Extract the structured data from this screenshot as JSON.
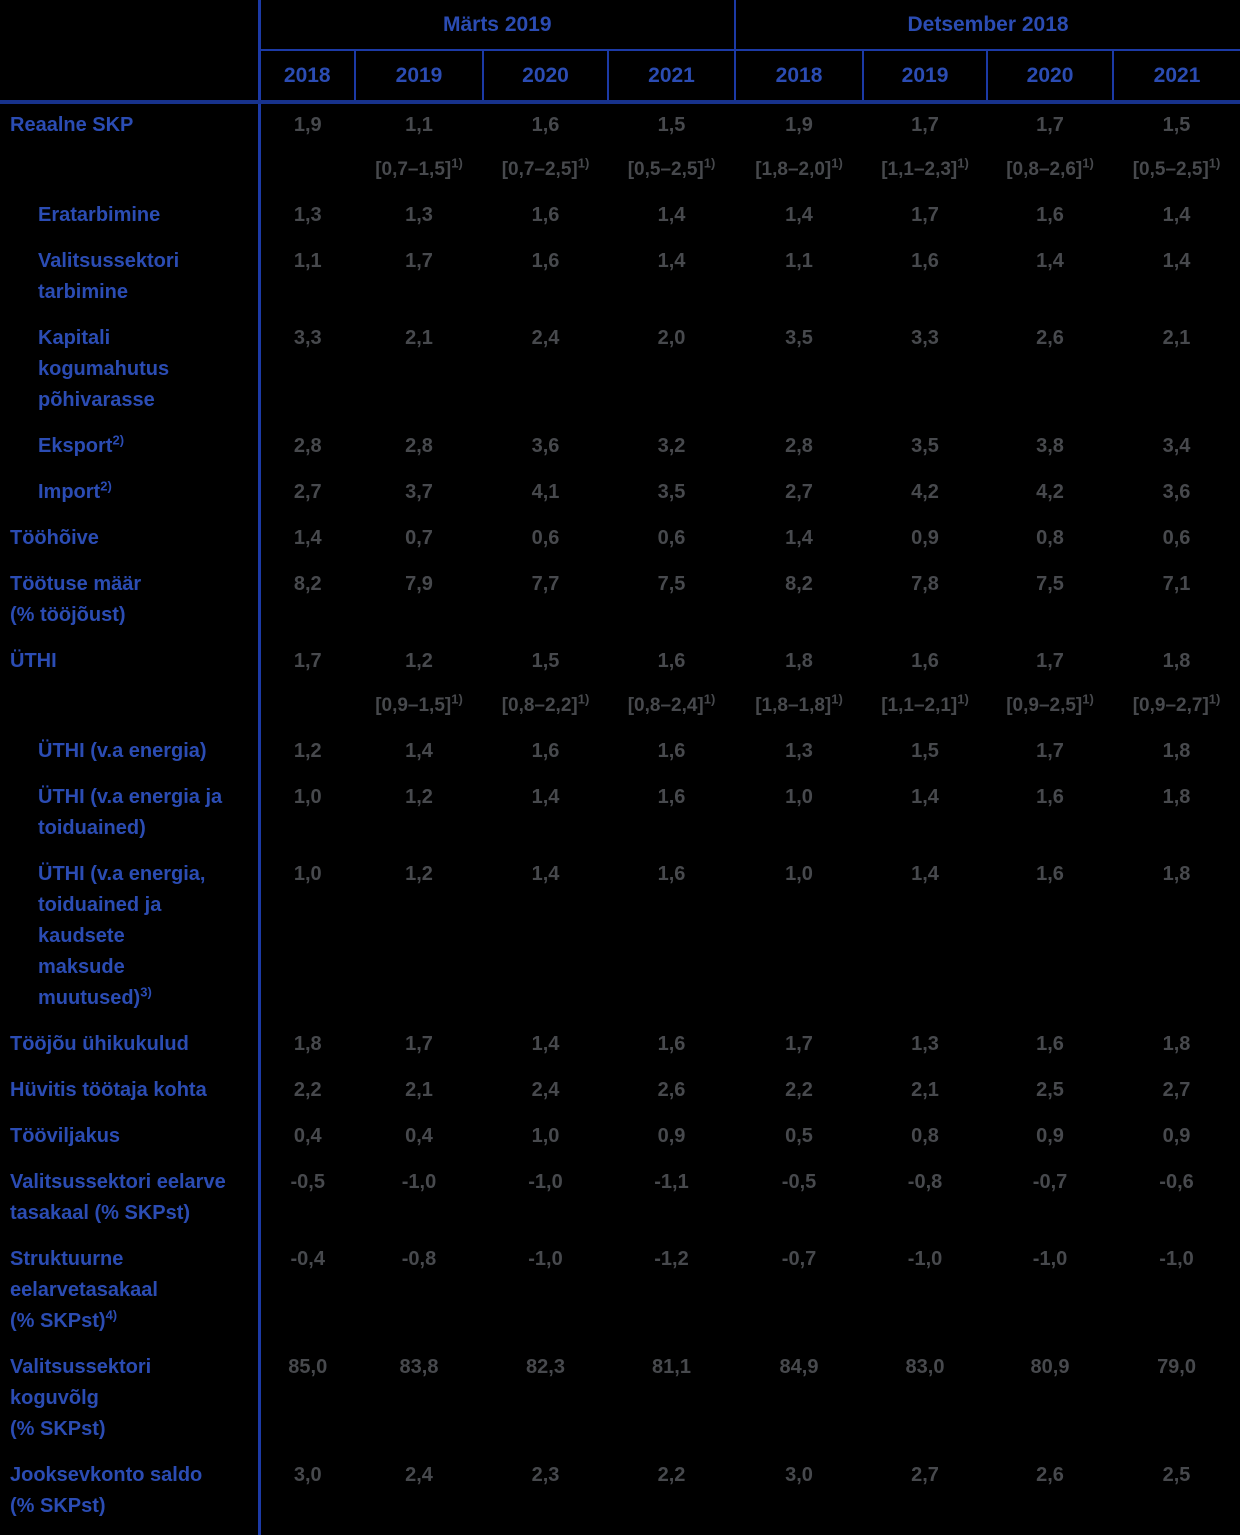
{
  "colors": {
    "background": "#000000",
    "line_blue": "#1c3aa6",
    "line_dark_blue": "#17328c",
    "label_blue": "#2b4cb3",
    "value_gray": "#47494d"
  },
  "table": {
    "col_groups": [
      {
        "label": "Märts 2019",
        "years": [
          "2018",
          "2019",
          "2020",
          "2021"
        ]
      },
      {
        "label": "Detsember 2018",
        "years": [
          "2018",
          "2019",
          "2020",
          "2021"
        ]
      }
    ],
    "range_footnote_mark": "1)",
    "rows": [
      {
        "label": [
          "Reaalne SKP"
        ],
        "indent": false,
        "values": [
          "1,9",
          "1,1",
          "1,6",
          "1,5",
          "1,9",
          "1,7",
          "1,7",
          "1,5"
        ],
        "ranges": [
          "",
          "[0,7–1,5]",
          "[0,7–2,5]",
          "[0,5–2,5]",
          "[1,8–2,0]",
          "[1,1–2,3]",
          "[0,8–2,6]",
          "[0,5–2,5]"
        ]
      },
      {
        "label": [
          "Eratarbimine"
        ],
        "indent": true,
        "values": [
          "1,3",
          "1,3",
          "1,6",
          "1,4",
          "1,4",
          "1,7",
          "1,6",
          "1,4"
        ]
      },
      {
        "label": [
          "Valitsussektori",
          "tarbimine"
        ],
        "indent": true,
        "values": [
          "1,1",
          "1,7",
          "1,6",
          "1,4",
          "1,1",
          "1,6",
          "1,4",
          "1,4"
        ]
      },
      {
        "label": [
          "Kapitali",
          "kogumahutus",
          "põhivarasse"
        ],
        "indent": true,
        "values": [
          "3,3",
          "2,1",
          "2,4",
          "2,0",
          "3,5",
          "3,3",
          "2,6",
          "2,1"
        ]
      },
      {
        "label": [
          "Eksport"
        ],
        "label_sup": "2)",
        "indent": true,
        "values": [
          "2,8",
          "2,8",
          "3,6",
          "3,2",
          "2,8",
          "3,5",
          "3,8",
          "3,4"
        ]
      },
      {
        "label": [
          "Import"
        ],
        "label_sup": "2)",
        "indent": true,
        "values": [
          "2,7",
          "3,7",
          "4,1",
          "3,5",
          "2,7",
          "4,2",
          "4,2",
          "3,6"
        ]
      },
      {
        "label": [
          "Tööhõive"
        ],
        "indent": false,
        "values": [
          "1,4",
          "0,7",
          "0,6",
          "0,6",
          "1,4",
          "0,9",
          "0,8",
          "0,6"
        ]
      },
      {
        "label": [
          "Töötuse määr",
          "(% tööjõust)"
        ],
        "indent": false,
        "values": [
          "8,2",
          "7,9",
          "7,7",
          "7,5",
          "8,2",
          "7,8",
          "7,5",
          "7,1"
        ]
      },
      {
        "label": [
          "ÜTHI"
        ],
        "indent": false,
        "values": [
          "1,7",
          "1,2",
          "1,5",
          "1,6",
          "1,8",
          "1,6",
          "1,7",
          "1,8"
        ],
        "ranges": [
          "",
          "[0,9–1,5]",
          "[0,8–2,2]",
          "[0,8–2,4]",
          "[1,8–1,8]",
          "[1,1–2,1]",
          "[0,9–2,5]",
          "[0,9–2,7]"
        ]
      },
      {
        "label": [
          "ÜTHI (v.a energia)"
        ],
        "indent": true,
        "values": [
          "1,2",
          "1,4",
          "1,6",
          "1,6",
          "1,3",
          "1,5",
          "1,7",
          "1,8"
        ]
      },
      {
        "label": [
          "ÜTHI (v.a energia ja",
          "toiduained)"
        ],
        "indent": true,
        "values": [
          "1,0",
          "1,2",
          "1,4",
          "1,6",
          "1,0",
          "1,4",
          "1,6",
          "1,8"
        ]
      },
      {
        "label": [
          "ÜTHI (v.a energia,",
          "toiduained ja",
          "kaudsete",
          "maksude",
          "muutused)"
        ],
        "label_sup": "3)",
        "indent": true,
        "values": [
          "1,0",
          "1,2",
          "1,4",
          "1,6",
          "1,0",
          "1,4",
          "1,6",
          "1,8"
        ]
      },
      {
        "label": [
          "Tööjõu ühikukulud"
        ],
        "indent": false,
        "values": [
          "1,8",
          "1,7",
          "1,4",
          "1,6",
          "1,7",
          "1,3",
          "1,6",
          "1,8"
        ]
      },
      {
        "label": [
          "Hüvitis töötaja kohta"
        ],
        "indent": false,
        "values": [
          "2,2",
          "2,1",
          "2,4",
          "2,6",
          "2,2",
          "2,1",
          "2,5",
          "2,7"
        ]
      },
      {
        "label": [
          "Tööviljakus"
        ],
        "indent": false,
        "values": [
          "0,4",
          "0,4",
          "1,0",
          "0,9",
          "0,5",
          "0,8",
          "0,9",
          "0,9"
        ]
      },
      {
        "label": [
          "Valitsussektori eelarve",
          "tasakaal (% SKPst)"
        ],
        "indent": false,
        "values": [
          "-0,5",
          "-1,0",
          "-1,0",
          "-1,1",
          "-0,5",
          "-0,8",
          "-0,7",
          "-0,6"
        ]
      },
      {
        "label": [
          "Struktuurne",
          "eelarvetasakaal",
          "(% SKPst)"
        ],
        "label_sup": "4)",
        "indent": false,
        "values": [
          "-0,4",
          "-0,8",
          "-1,0",
          "-1,2",
          "-0,7",
          "-1,0",
          "-1,0",
          "-1,0"
        ]
      },
      {
        "label": [
          "Valitsussektori",
          "koguvõlg",
          "(% SKPst)"
        ],
        "indent": false,
        "values": [
          "85,0",
          "83,8",
          "82,3",
          "81,1",
          "84,9",
          "83,0",
          "80,9",
          "79,0"
        ]
      },
      {
        "label": [
          "Jooksevkonto saldo",
          "(% SKPst)"
        ],
        "indent": false,
        "values": [
          "3,0",
          "2,4",
          "2,3",
          "2,2",
          "3,0",
          "2,7",
          "2,6",
          "2,5"
        ]
      }
    ]
  }
}
